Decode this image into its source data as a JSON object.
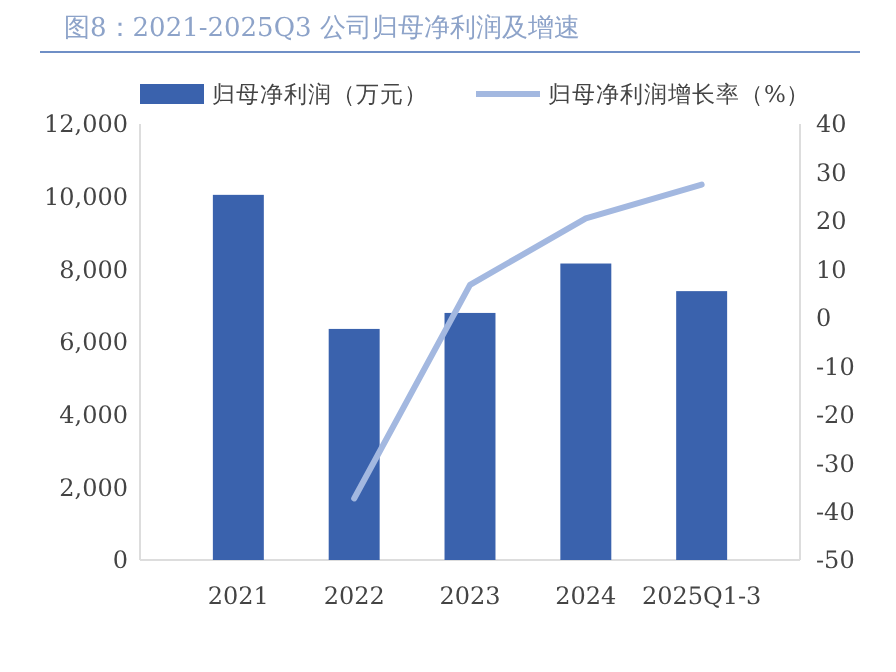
{
  "chart_data": {
    "type": "bar",
    "title": "图8：2021-2025Q3 公司归母净利润及增速",
    "categories": [
      "2021",
      "2022",
      "2023",
      "2024",
      "2025Q1-3"
    ],
    "series": [
      {
        "name": "归母净利润（万元）",
        "color": "#3a62ad",
        "values": [
          10050,
          6360,
          6800,
          8160,
          7400
        ]
      },
      {
        "name": "归母净利润增长率（%）",
        "type": "line",
        "axis": "y2",
        "color": "#a3b8e0",
        "values": [
          null,
          -37.3,
          6.8,
          20.5,
          27.5
        ]
      }
    ],
    "ylim": [
      0,
      12000
    ],
    "yticks": [
      {
        "value": 0,
        "label": "0"
      },
      {
        "value": 2000,
        "label": "2,000"
      },
      {
        "value": 4000,
        "label": "4,000"
      },
      {
        "value": 6000,
        "label": "6,000"
      },
      {
        "value": 8000,
        "label": "8,000"
      },
      {
        "value": 10000,
        "label": "10,000"
      },
      {
        "value": 12000,
        "label": "12,000"
      }
    ],
    "y2lim": [
      -50,
      40
    ],
    "y2ticks": [
      -50,
      -40,
      -30,
      -20,
      -10,
      0,
      10,
      20,
      30,
      40
    ],
    "legend": "top",
    "grid": false
  }
}
